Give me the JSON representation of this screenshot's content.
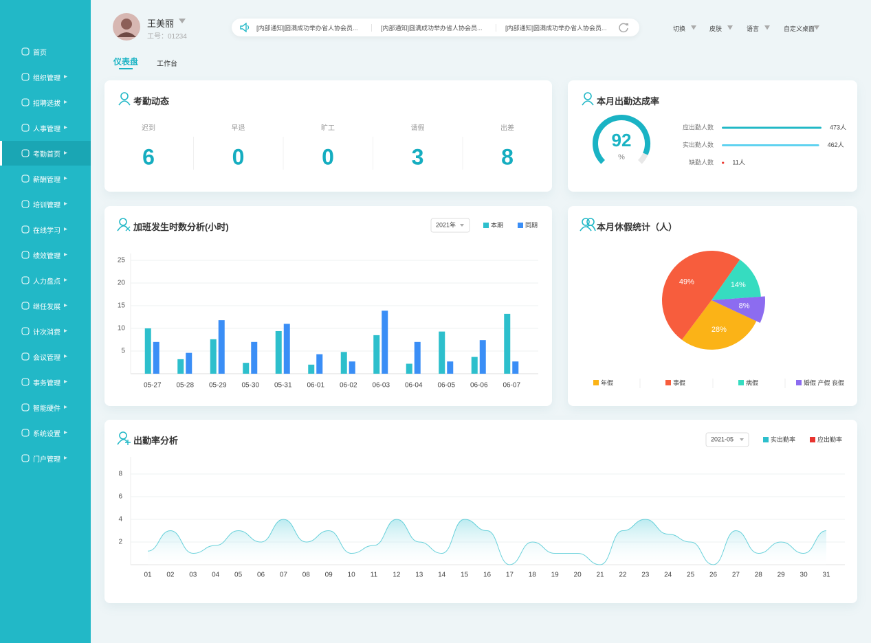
{
  "sidebar": {
    "items": [
      "首页",
      "组织管理",
      "招聘选拔",
      "人事管理",
      "考勤首页",
      "薪酬管理",
      "培训管理",
      "在线学习",
      "绩效管理",
      "人力盘点",
      "继任发展",
      "计次消费",
      "会议管理",
      "事务管理",
      "智能硬件",
      "系统设置",
      "门户管理"
    ],
    "active": 4
  },
  "header": {
    "user_name": "王美丽",
    "employee_id": "工号：01234",
    "notices": [
      "[内部通知]圆满成功举办省人协会员...",
      "[内部通知]圆满成功举办省人协会员...",
      "[内部通知]圆满成功举办省人协会员..."
    ],
    "menus": [
      "切换",
      "皮肤",
      "语言",
      "自定义桌面"
    ]
  },
  "tabs": {
    "items": [
      "仪表盘",
      "工作台"
    ],
    "active": 0
  },
  "attendance": {
    "title": "考勤动态",
    "items": [
      {
        "label": "迟到",
        "value": 6
      },
      {
        "label": "早退",
        "value": 0
      },
      {
        "label": "旷工",
        "value": 0
      },
      {
        "label": "请假",
        "value": 3
      },
      {
        "label": "出差",
        "value": 8
      }
    ]
  },
  "chart_data": [
    {
      "type": "gauge",
      "title": "本月出勤达成率",
      "value": 92,
      "unit": "%",
      "color": "#1ab3c4",
      "categories": [
        "应出勤人数",
        "实出勤人数",
        "缺勤人数"
      ],
      "values": [
        473,
        462,
        11
      ],
      "value_labels": [
        "473人",
        "462人",
        "11人"
      ],
      "colors": [
        "#21b8c6",
        "#5fd2f0",
        "#ec3a32"
      ]
    },
    {
      "type": "bar",
      "title": "加班发生时数分析(小时)",
      "selector": "2021年",
      "categories": [
        "05-27",
        "05-28",
        "05-29",
        "05-30",
        "05-31",
        "06-01",
        "06-02",
        "06-03",
        "06-04",
        "06-05",
        "06-06",
        "06-07"
      ],
      "series": [
        {
          "name": "本期",
          "color": "#2dbfcc",
          "values": [
            10,
            3.2,
            7.6,
            2.4,
            9.4,
            2,
            4.8,
            8.5,
            2.2,
            9.3,
            3.7,
            13.2
          ]
        },
        {
          "name": "同期",
          "color": "#3a8ef6",
          "values": [
            7,
            4.6,
            11.8,
            7,
            11,
            4.3,
            2.7,
            13.9,
            7,
            2.7,
            7.4,
            2.7
          ]
        }
      ],
      "ylim": [
        0,
        25
      ],
      "yticks": [
        5,
        10,
        15,
        20,
        25
      ],
      "grid": true,
      "legend": "top-right"
    },
    {
      "type": "pie",
      "title": "本月休假统计（人）",
      "categories": [
        "年假",
        "事假",
        "病假",
        "婚假 产假 丧假"
      ],
      "values": [
        28,
        49,
        14,
        8
      ],
      "value_labels": [
        "28%",
        "49%",
        "14%",
        "8%"
      ],
      "colors": [
        "#fbb317",
        "#f75d3d",
        "#36dcc0",
        "#8c6cf0"
      ],
      "legend": "bottom"
    },
    {
      "type": "area",
      "title": "出勤率分析",
      "selector": "2021-05",
      "categories": [
        "01",
        "02",
        "03",
        "04",
        "05",
        "06",
        "07",
        "08",
        "09",
        "10",
        "11",
        "12",
        "13",
        "14",
        "15",
        "16",
        "17",
        "18",
        "19",
        "20",
        "21",
        "22",
        "23",
        "24",
        "25",
        "26",
        "27",
        "28",
        "29",
        "30",
        "31"
      ],
      "series": [
        {
          "name": "实出勤率",
          "color": "#2dbfcc",
          "values": [
            1.2,
            3,
            1,
            1.7,
            3,
            2,
            4,
            2,
            3,
            1,
            1.7,
            4,
            2,
            1,
            4,
            3,
            0,
            2,
            1,
            1,
            0,
            3,
            4,
            2.7,
            2,
            0,
            3,
            1,
            2,
            1,
            3
          ]
        },
        {
          "name": "应出勤率",
          "color": "#e8342f",
          "values": [
            null,
            null,
            null,
            null,
            null,
            null,
            null,
            null,
            null,
            null,
            null,
            null,
            null,
            null,
            null,
            null,
            null,
            null,
            null,
            null,
            null,
            null,
            null,
            null,
            null,
            null,
            null,
            null,
            null,
            null,
            null
          ]
        }
      ],
      "ylim": [
        0,
        8
      ],
      "yticks": [
        2,
        4,
        6,
        8
      ],
      "grid": true,
      "legend": "top-right"
    }
  ]
}
